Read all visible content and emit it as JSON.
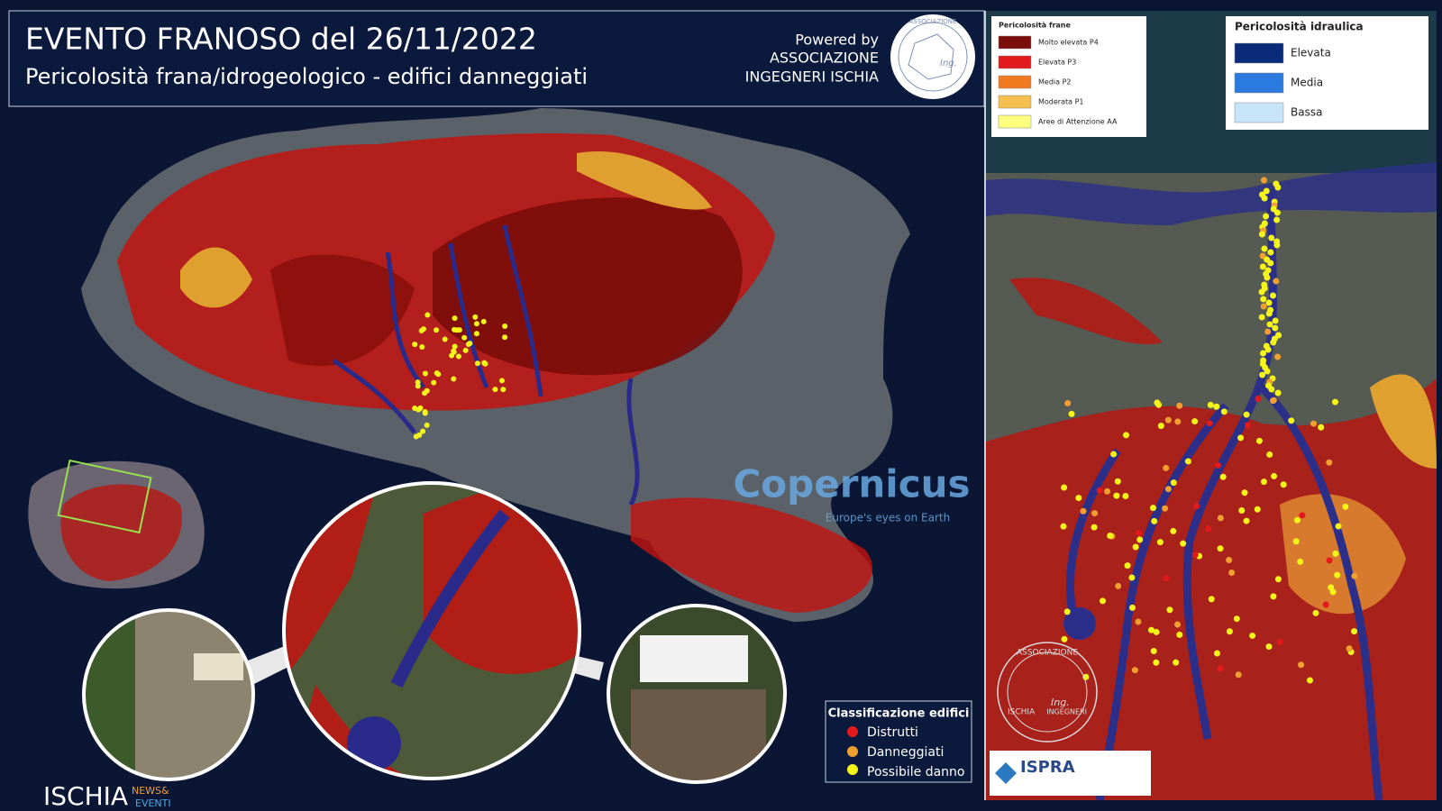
{
  "header": {
    "title": "EVENTO FRANOSO del 26/11/2022",
    "subtitle": "Pericolosità frana/idrogeologico - edifici danneggiati"
  },
  "credit": {
    "powered": "Powered by",
    "line1": "ASSOCIAZIONE",
    "line2": "INGEGNERI ISCHIA"
  },
  "logo": {
    "top": "ASSOCIAZIONE",
    "right": "INGEGNERI",
    "left": "ISCHIA",
    "mark": "Ing."
  },
  "legend_frane": {
    "title": "Pericolosità frane",
    "items": [
      "Molto elevata P4",
      "Elevata P3",
      "Media P2",
      "Moderata P1",
      "Aree di Attenzione AA"
    ]
  },
  "legend_idraulica": {
    "title": "Pericolosità idraulica",
    "items": [
      "Elevata",
      "Media",
      "Bassa"
    ]
  },
  "legend_edifici": {
    "title": "Classificazione edifici",
    "items": [
      "Distrutti",
      "Danneggiati",
      "Possibile danno"
    ]
  },
  "copernicus": {
    "name": "Copernicus",
    "tagline": "Europe's eyes on Earth"
  },
  "ispra": {
    "name": "ISPRA"
  },
  "brand": {
    "name": "ISCHIA",
    "news": "NEWS&",
    "events": "EVENTI"
  }
}
